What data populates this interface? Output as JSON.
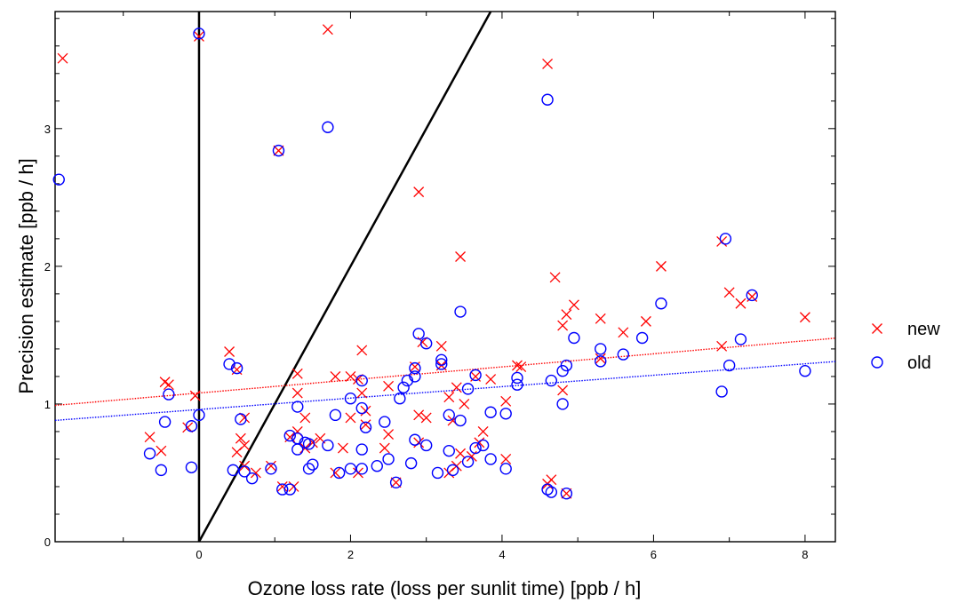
{
  "chart_data": {
    "type": "scatter",
    "xlabel": "Ozone loss rate (loss per sunlit time) [ppb / h]",
    "ylabel": "Precision estimate [ppb / h]",
    "xlim": [
      -1.9,
      8.4
    ],
    "ylim": [
      0,
      3.85
    ],
    "xticks": [
      0,
      2,
      4,
      6,
      8
    ],
    "yticks": [
      0,
      1,
      2,
      3
    ],
    "grid": false,
    "legend_position": "right",
    "reference_lines": [
      {
        "kind": "vertical",
        "x": 0
      },
      {
        "kind": "slope",
        "slope": 1,
        "intercept": 0
      }
    ],
    "series": [
      {
        "name": "new",
        "marker": "x",
        "color": "#ff0000",
        "trend": {
          "intercept": 1.08,
          "slope": 0.0474
        },
        "points": [
          [
            -1.8,
            3.51
          ],
          [
            0.0,
            3.67
          ],
          [
            1.7,
            3.72
          ],
          [
            4.6,
            3.47
          ],
          [
            1.05,
            2.84
          ],
          [
            2.9,
            2.54
          ],
          [
            3.45,
            2.07
          ],
          [
            6.1,
            2.0
          ],
          [
            6.9,
            2.18
          ],
          [
            4.7,
            1.92
          ],
          [
            7.0,
            1.81
          ],
          [
            7.3,
            1.78
          ],
          [
            7.15,
            1.73
          ],
          [
            4.95,
            1.72
          ],
          [
            4.85,
            1.65
          ],
          [
            4.8,
            1.57
          ],
          [
            5.3,
            1.62
          ],
          [
            5.6,
            1.52
          ],
          [
            5.9,
            1.6
          ],
          [
            8.0,
            1.63
          ],
          [
            6.9,
            1.42
          ],
          [
            2.95,
            1.45
          ],
          [
            3.2,
            1.42
          ],
          [
            0.4,
            1.38
          ],
          [
            2.15,
            1.39
          ],
          [
            3.2,
            1.28
          ],
          [
            4.2,
            1.28
          ],
          [
            5.3,
            1.33
          ],
          [
            4.25,
            1.27
          ],
          [
            2.85,
            1.27
          ],
          [
            1.3,
            1.22
          ],
          [
            1.8,
            1.2
          ],
          [
            2.1,
            1.18
          ],
          [
            3.65,
            1.2
          ],
          [
            3.4,
            1.12
          ],
          [
            3.85,
            1.18
          ],
          [
            -0.45,
            1.16
          ],
          [
            -0.4,
            1.14
          ],
          [
            0.5,
            1.25
          ],
          [
            1.3,
            1.08
          ],
          [
            2.5,
            1.13
          ],
          [
            3.3,
            1.05
          ],
          [
            4.05,
            1.02
          ],
          [
            4.8,
            1.1
          ],
          [
            -0.05,
            1.06
          ],
          [
            2.0,
            0.9
          ],
          [
            2.2,
            0.95
          ],
          [
            2.9,
            0.92
          ],
          [
            3.0,
            0.9
          ],
          [
            3.5,
            1.0
          ],
          [
            0.6,
            0.9
          ],
          [
            1.4,
            0.9
          ],
          [
            2.2,
            0.85
          ],
          [
            3.35,
            0.88
          ],
          [
            -0.15,
            0.83
          ],
          [
            -0.65,
            0.76
          ],
          [
            -0.5,
            0.66
          ],
          [
            0.6,
            0.7
          ],
          [
            0.5,
            0.65
          ],
          [
            1.3,
            0.8
          ],
          [
            1.5,
            0.72
          ],
          [
            1.9,
            0.68
          ],
          [
            2.5,
            0.78
          ],
          [
            2.9,
            0.72
          ],
          [
            3.75,
            0.8
          ],
          [
            3.7,
            0.72
          ],
          [
            1.2,
            0.76
          ],
          [
            1.4,
            0.68
          ],
          [
            2.45,
            0.68
          ],
          [
            3.45,
            0.64
          ],
          [
            3.6,
            0.62
          ],
          [
            4.05,
            0.6
          ],
          [
            0.6,
            0.55
          ],
          [
            0.75,
            0.5
          ],
          [
            0.95,
            0.55
          ],
          [
            1.1,
            0.4
          ],
          [
            1.25,
            0.4
          ],
          [
            1.8,
            0.5
          ],
          [
            2.1,
            0.5
          ],
          [
            2.6,
            0.43
          ],
          [
            3.3,
            0.5
          ],
          [
            3.4,
            0.55
          ],
          [
            4.6,
            0.42
          ],
          [
            4.65,
            0.45
          ],
          [
            4.85,
            0.35
          ],
          [
            2.0,
            1.2
          ],
          [
            2.15,
            1.08
          ],
          [
            1.6,
            0.75
          ],
          [
            0.55,
            0.75
          ]
        ]
      },
      {
        "name": "old",
        "marker": "o",
        "color": "#0000ff",
        "trend": {
          "intercept": 0.96,
          "slope": 0.0415
        },
        "points": [
          [
            0.0,
            3.69
          ],
          [
            4.6,
            3.21
          ],
          [
            1.7,
            3.01
          ],
          [
            1.05,
            2.84
          ],
          [
            -1.85,
            2.63
          ],
          [
            6.95,
            2.2
          ],
          [
            6.1,
            1.73
          ],
          [
            7.3,
            1.79
          ],
          [
            3.45,
            1.67
          ],
          [
            2.9,
            1.51
          ],
          [
            3.0,
            1.44
          ],
          [
            4.95,
            1.48
          ],
          [
            5.85,
            1.48
          ],
          [
            7.15,
            1.47
          ],
          [
            5.3,
            1.4
          ],
          [
            5.6,
            1.36
          ],
          [
            0.4,
            1.29
          ],
          [
            0.5,
            1.26
          ],
          [
            2.85,
            1.26
          ],
          [
            3.2,
            1.32
          ],
          [
            3.2,
            1.29
          ],
          [
            5.3,
            1.31
          ],
          [
            7.0,
            1.28
          ],
          [
            8.0,
            1.24
          ],
          [
            -0.4,
            1.07
          ],
          [
            0.0,
            0.92
          ],
          [
            -0.45,
            0.87
          ],
          [
            0.55,
            0.89
          ],
          [
            1.3,
            0.98
          ],
          [
            1.8,
            0.92
          ],
          [
            2.0,
            1.04
          ],
          [
            2.15,
            1.17
          ],
          [
            2.15,
            0.97
          ],
          [
            2.45,
            0.87
          ],
          [
            2.65,
            1.04
          ],
          [
            2.7,
            1.12
          ],
          [
            2.85,
            1.2
          ],
          [
            2.75,
            1.17
          ],
          [
            3.3,
            0.92
          ],
          [
            3.45,
            0.88
          ],
          [
            3.55,
            1.11
          ],
          [
            3.65,
            1.21
          ],
          [
            3.85,
            0.94
          ],
          [
            4.05,
            0.93
          ],
          [
            4.2,
            1.14
          ],
          [
            4.2,
            1.19
          ],
          [
            4.65,
            1.17
          ],
          [
            4.85,
            1.28
          ],
          [
            4.8,
            1.24
          ],
          [
            4.8,
            1.0
          ],
          [
            6.9,
            1.09
          ],
          [
            -0.1,
            0.84
          ],
          [
            -0.65,
            0.64
          ],
          [
            -0.5,
            0.52
          ],
          [
            -0.1,
            0.54
          ],
          [
            0.45,
            0.52
          ],
          [
            0.6,
            0.51
          ],
          [
            0.7,
            0.46
          ],
          [
            0.95,
            0.53
          ],
          [
            1.1,
            0.38
          ],
          [
            1.2,
            0.38
          ],
          [
            1.2,
            0.77
          ],
          [
            1.3,
            0.67
          ],
          [
            1.3,
            0.75
          ],
          [
            1.4,
            0.72
          ],
          [
            1.5,
            0.56
          ],
          [
            1.45,
            0.71
          ],
          [
            1.7,
            0.7
          ],
          [
            1.85,
            0.5
          ],
          [
            2.0,
            0.53
          ],
          [
            2.15,
            0.53
          ],
          [
            2.15,
            0.67
          ],
          [
            2.35,
            0.55
          ],
          [
            2.5,
            0.6
          ],
          [
            2.6,
            0.43
          ],
          [
            2.8,
            0.57
          ],
          [
            2.85,
            0.74
          ],
          [
            3.0,
            0.7
          ],
          [
            3.15,
            0.5
          ],
          [
            3.35,
            0.52
          ],
          [
            3.3,
            0.66
          ],
          [
            3.55,
            0.58
          ],
          [
            3.65,
            0.68
          ],
          [
            3.75,
            0.7
          ],
          [
            3.85,
            0.6
          ],
          [
            4.05,
            0.53
          ],
          [
            4.6,
            0.38
          ],
          [
            4.65,
            0.36
          ],
          [
            4.85,
            0.35
          ],
          [
            2.2,
            0.83
          ],
          [
            1.45,
            0.53
          ]
        ]
      }
    ]
  }
}
